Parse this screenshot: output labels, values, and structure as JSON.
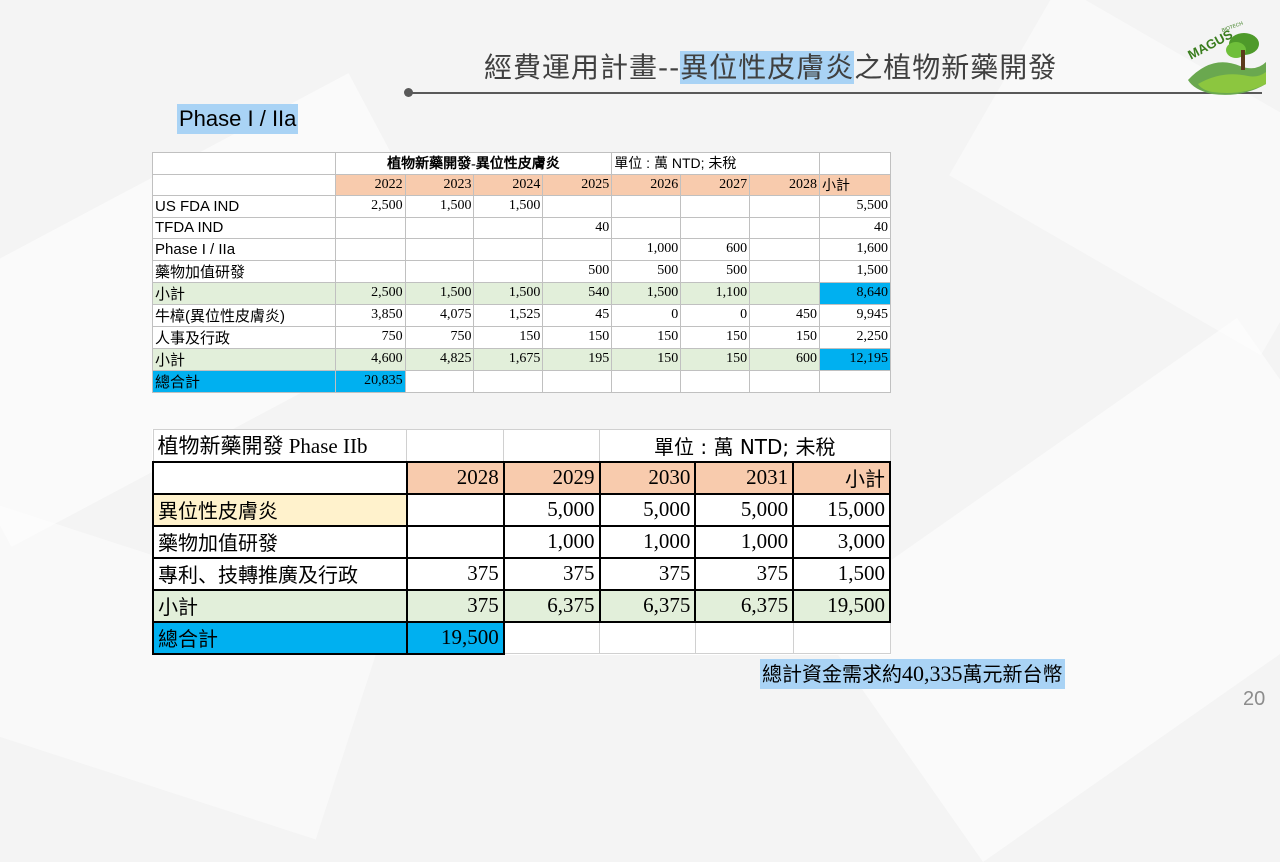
{
  "title": {
    "prefix": "經費運用計畫--",
    "highlight": "異位性皮膚炎",
    "suffix": "之植物新藥開發"
  },
  "logo": {
    "text": "MAGUS",
    "subtext": "BIOTECH"
  },
  "phase_label": "Phase I / IIa",
  "table1": {
    "title": "植物新藥開發-異位性皮膚炎",
    "unit": "單位 : 萬 NTD;  未稅",
    "years": [
      "2022",
      "2023",
      "2024",
      "2025",
      "2026",
      "2027",
      "2028"
    ],
    "total_col": "小計",
    "rows": [
      {
        "label": "US FDA IND",
        "values": [
          "2,500",
          "1,500",
          "1,500",
          "",
          "",
          "",
          ""
        ],
        "total": "5,500"
      },
      {
        "label": "TFDA IND",
        "values": [
          "",
          "",
          "",
          "40",
          "",
          "",
          ""
        ],
        "total": "40"
      },
      {
        "label": "Phase I / IIa",
        "values": [
          "",
          "",
          "",
          "",
          "1,000",
          "600",
          ""
        ],
        "total": "1,600"
      },
      {
        "label": "藥物加值研發",
        "values": [
          "",
          "",
          "",
          "500",
          "500",
          "500",
          ""
        ],
        "total": "1,500"
      },
      {
        "label": "小計",
        "values": [
          "2,500",
          "1,500",
          "1,500",
          "540",
          "1,500",
          "1,100",
          ""
        ],
        "total": "8,640"
      },
      {
        "label": "牛樟(異位性皮膚炎)",
        "values": [
          "3,850",
          "4,075",
          "1,525",
          "45",
          "0",
          "0",
          "450"
        ],
        "total": "9,945"
      },
      {
        "label": "人事及行政",
        "values": [
          "750",
          "750",
          "150",
          "150",
          "150",
          "150",
          "150"
        ],
        "total": "2,250"
      },
      {
        "label": "小計",
        "values": [
          "4,600",
          "4,825",
          "1,675",
          "195",
          "150",
          "150",
          "600"
        ],
        "total": "12,195"
      }
    ],
    "grand_total_label": "總合計",
    "grand_total": "20,835"
  },
  "table2": {
    "title": "植物新藥開發 Phase IIb",
    "unit": "單位 : 萬 NTD;  未稅",
    "years": [
      "2028",
      "2029",
      "2030",
      "2031"
    ],
    "total_col": "小計",
    "rows": [
      {
        "label": "異位性皮膚炎",
        "values": [
          "",
          "5,000",
          "5,000",
          "5,000"
        ],
        "total": "15,000"
      },
      {
        "label": "藥物加值研發",
        "values": [
          "",
          "1,000",
          "1,000",
          "1,000"
        ],
        "total": "3,000"
      },
      {
        "label": "專利、技轉推廣及行政",
        "values": [
          "375",
          "375",
          "375",
          "375"
        ],
        "total": "1,500"
      },
      {
        "label": "小計",
        "values": [
          "375",
          "6,375",
          "6,375",
          "6,375"
        ],
        "total": "19,500"
      }
    ],
    "grand_total_label": "總合計",
    "grand_total": "19,500"
  },
  "total_note": {
    "prefix": "總計資金需求約",
    "amount": "40,335",
    "suffix": "萬元新台幣"
  },
  "page_number": "20"
}
